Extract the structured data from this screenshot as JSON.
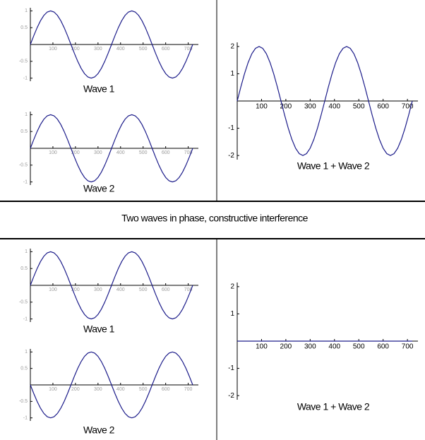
{
  "caption": "Two waves in phase, constructive interference",
  "chart_data": [
    {
      "type": "line",
      "title": "Wave 1",
      "color": "#1c1c8a",
      "xlim": [
        0,
        720
      ],
      "ylim": [
        -1.05,
        1.05
      ],
      "xticks": [
        100,
        200,
        300,
        400,
        500,
        600,
        700
      ],
      "yticks": [
        -1,
        -0.5,
        0.5,
        1
      ],
      "x": [
        0,
        15,
        30,
        45,
        60,
        75,
        90,
        105,
        120,
        135,
        150,
        165,
        180,
        195,
        210,
        225,
        240,
        255,
        270,
        285,
        300,
        315,
        330,
        345,
        360,
        375,
        390,
        405,
        420,
        435,
        450,
        465,
        480,
        495,
        510,
        525,
        540,
        555,
        570,
        585,
        600,
        615,
        630,
        645,
        660,
        675,
        690,
        705,
        720
      ],
      "values": [
        0,
        0.259,
        0.5,
        0.707,
        0.866,
        0.966,
        1,
        0.966,
        0.866,
        0.707,
        0.5,
        0.259,
        0,
        -0.259,
        -0.5,
        -0.707,
        -0.866,
        -0.966,
        -1,
        -0.966,
        -0.866,
        -0.707,
        -0.5,
        -0.259,
        0,
        0.259,
        0.5,
        0.707,
        0.866,
        0.966,
        1,
        0.966,
        0.866,
        0.707,
        0.5,
        0.259,
        0,
        -0.259,
        -0.5,
        -0.707,
        -0.866,
        -0.966,
        -1,
        -0.966,
        -0.866,
        -0.707,
        -0.5,
        -0.259,
        0
      ]
    },
    {
      "type": "line",
      "title": "Wave 2",
      "color": "#1c1c8a",
      "xlim": [
        0,
        720
      ],
      "ylim": [
        -1.05,
        1.05
      ],
      "xticks": [
        100,
        200,
        300,
        400,
        500,
        600,
        700
      ],
      "yticks": [
        -1,
        -0.5,
        0.5,
        1
      ],
      "x": [
        0,
        15,
        30,
        45,
        60,
        75,
        90,
        105,
        120,
        135,
        150,
        165,
        180,
        195,
        210,
        225,
        240,
        255,
        270,
        285,
        300,
        315,
        330,
        345,
        360,
        375,
        390,
        405,
        420,
        435,
        450,
        465,
        480,
        495,
        510,
        525,
        540,
        555,
        570,
        585,
        600,
        615,
        630,
        645,
        660,
        675,
        690,
        705,
        720
      ],
      "values": [
        0,
        0.259,
        0.5,
        0.707,
        0.866,
        0.966,
        1,
        0.966,
        0.866,
        0.707,
        0.5,
        0.259,
        0,
        -0.259,
        -0.5,
        -0.707,
        -0.866,
        -0.966,
        -1,
        -0.966,
        -0.866,
        -0.707,
        -0.5,
        -0.259,
        0,
        0.259,
        0.5,
        0.707,
        0.866,
        0.966,
        1,
        0.966,
        0.866,
        0.707,
        0.5,
        0.259,
        0,
        -0.259,
        -0.5,
        -0.707,
        -0.866,
        -0.966,
        -1,
        -0.966,
        -0.866,
        -0.707,
        -0.5,
        -0.259,
        0
      ]
    },
    {
      "type": "line",
      "title": "Wave 1 + Wave 2",
      "color": "#1c1c8a",
      "xlim": [
        0,
        720
      ],
      "ylim": [
        -2.1,
        2.1
      ],
      "xticks": [
        100,
        200,
        300,
        400,
        500,
        600,
        700
      ],
      "yticks": [
        -2,
        -1,
        1,
        2
      ],
      "x": [
        0,
        15,
        30,
        45,
        60,
        75,
        90,
        105,
        120,
        135,
        150,
        165,
        180,
        195,
        210,
        225,
        240,
        255,
        270,
        285,
        300,
        315,
        330,
        345,
        360,
        375,
        390,
        405,
        420,
        435,
        450,
        465,
        480,
        495,
        510,
        525,
        540,
        555,
        570,
        585,
        600,
        615,
        630,
        645,
        660,
        675,
        690,
        705,
        720
      ],
      "values": [
        0,
        0.518,
        1,
        1.414,
        1.732,
        1.932,
        2,
        1.932,
        1.732,
        1.414,
        1,
        0.518,
        0,
        -0.518,
        -1,
        -1.414,
        -1.732,
        -1.932,
        -2,
        -1.932,
        -1.732,
        -1.414,
        -1,
        -0.518,
        0,
        0.518,
        1,
        1.414,
        1.732,
        1.932,
        2,
        1.932,
        1.732,
        1.414,
        1,
        0.518,
        0,
        -0.518,
        -1,
        -1.414,
        -1.732,
        -1.932,
        -2,
        -1.932,
        -1.732,
        -1.414,
        -1,
        -0.518,
        0
      ]
    },
    {
      "type": "line",
      "title": "Wave 1",
      "color": "#1c1c8a",
      "xlim": [
        0,
        720
      ],
      "ylim": [
        -1.05,
        1.05
      ],
      "xticks": [
        100,
        200,
        300,
        400,
        500,
        600,
        700
      ],
      "yticks": [
        -1,
        -0.5,
        0.5,
        1
      ],
      "x": [
        0,
        15,
        30,
        45,
        60,
        75,
        90,
        105,
        120,
        135,
        150,
        165,
        180,
        195,
        210,
        225,
        240,
        255,
        270,
        285,
        300,
        315,
        330,
        345,
        360,
        375,
        390,
        405,
        420,
        435,
        450,
        465,
        480,
        495,
        510,
        525,
        540,
        555,
        570,
        585,
        600,
        615,
        630,
        645,
        660,
        675,
        690,
        705,
        720
      ],
      "values": [
        0,
        0.259,
        0.5,
        0.707,
        0.866,
        0.966,
        1,
        0.966,
        0.866,
        0.707,
        0.5,
        0.259,
        0,
        -0.259,
        -0.5,
        -0.707,
        -0.866,
        -0.966,
        -1,
        -0.966,
        -0.866,
        -0.707,
        -0.5,
        -0.259,
        0,
        0.259,
        0.5,
        0.707,
        0.866,
        0.966,
        1,
        0.966,
        0.866,
        0.707,
        0.5,
        0.259,
        0,
        -0.259,
        -0.5,
        -0.707,
        -0.866,
        -0.966,
        -1,
        -0.966,
        -0.866,
        -0.707,
        -0.5,
        -0.259,
        0
      ]
    },
    {
      "type": "line",
      "title": "Wave 2",
      "color": "#1c1c8a",
      "xlim": [
        0,
        720
      ],
      "ylim": [
        -1.05,
        1.05
      ],
      "xticks": [
        100,
        200,
        300,
        400,
        500,
        600,
        700
      ],
      "yticks": [
        -1,
        -0.5,
        0.5,
        1
      ],
      "x": [
        0,
        15,
        30,
        45,
        60,
        75,
        90,
        105,
        120,
        135,
        150,
        165,
        180,
        195,
        210,
        225,
        240,
        255,
        270,
        285,
        300,
        315,
        330,
        345,
        360,
        375,
        390,
        405,
        420,
        435,
        450,
        465,
        480,
        495,
        510,
        525,
        540,
        555,
        570,
        585,
        600,
        615,
        630,
        645,
        660,
        675,
        690,
        705,
        720
      ],
      "values": [
        0,
        -0.259,
        -0.5,
        -0.707,
        -0.866,
        -0.966,
        -1,
        -0.966,
        -0.866,
        -0.707,
        -0.5,
        -0.259,
        0,
        0.259,
        0.5,
        0.707,
        0.866,
        0.966,
        1,
        0.966,
        0.866,
        0.707,
        0.5,
        0.259,
        0,
        -0.259,
        -0.5,
        -0.707,
        -0.866,
        -0.966,
        -1,
        -0.966,
        -0.866,
        -0.707,
        -0.5,
        -0.259,
        0,
        0.259,
        0.5,
        0.707,
        0.866,
        0.966,
        1,
        0.966,
        0.866,
        0.707,
        0.5,
        0.259,
        0
      ]
    },
    {
      "type": "line",
      "title": "Wave 1 + Wave 2",
      "color": "#1c1c8a",
      "xlim": [
        0,
        720
      ],
      "ylim": [
        -2.1,
        2.1
      ],
      "xticks": [
        100,
        200,
        300,
        400,
        500,
        600,
        700
      ],
      "yticks": [
        -2,
        -1,
        1,
        2
      ],
      "x": [
        0,
        15,
        30,
        45,
        60,
        75,
        90,
        105,
        120,
        135,
        150,
        165,
        180,
        195,
        210,
        225,
        240,
        255,
        270,
        285,
        300,
        315,
        330,
        345,
        360,
        375,
        390,
        405,
        420,
        435,
        450,
        465,
        480,
        495,
        510,
        525,
        540,
        555,
        570,
        585,
        600,
        615,
        630,
        645,
        660,
        675,
        690,
        705,
        720
      ],
      "values": [
        0,
        0,
        0,
        0,
        0,
        0,
        0,
        0,
        0,
        0,
        0,
        0,
        0,
        0,
        0,
        0,
        0,
        0,
        0,
        0,
        0,
        0,
        0,
        0,
        0,
        0,
        0,
        0,
        0,
        0,
        0,
        0,
        0,
        0,
        0,
        0,
        0,
        0,
        0,
        0,
        0,
        0,
        0,
        0,
        0,
        0,
        0,
        0,
        0
      ]
    }
  ]
}
